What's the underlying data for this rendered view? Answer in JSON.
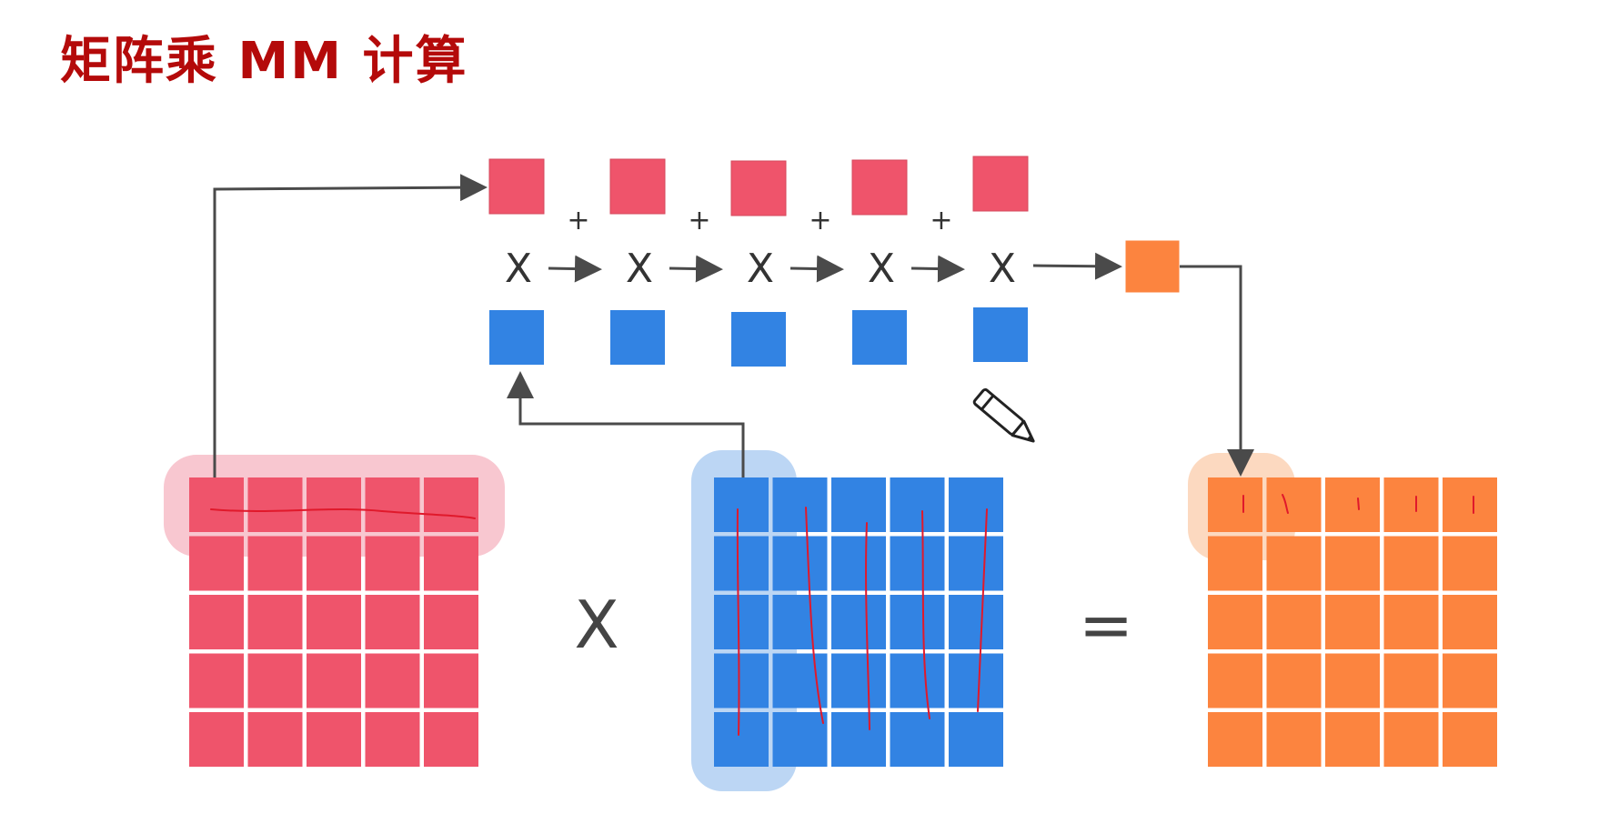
{
  "title": "矩阵乘 MM 计算",
  "symbols": {
    "times": "X",
    "plus": "+",
    "equals": "="
  },
  "colors": {
    "matrix_a": "#ef546b",
    "matrix_a_highlight": "#f8c7d0",
    "matrix_b": "#3283e3",
    "matrix_b_highlight": "#bcd6f4",
    "matrix_c": "#fc843f",
    "matrix_c_highlight": "#fcd9c0",
    "arrow": "#4a4a4a",
    "annotation": "#e0192b"
  },
  "matrix": {
    "rows": 5,
    "cols": 5
  },
  "chain": {
    "terms": 5
  },
  "icons": {
    "pencil": "pencil-icon"
  }
}
